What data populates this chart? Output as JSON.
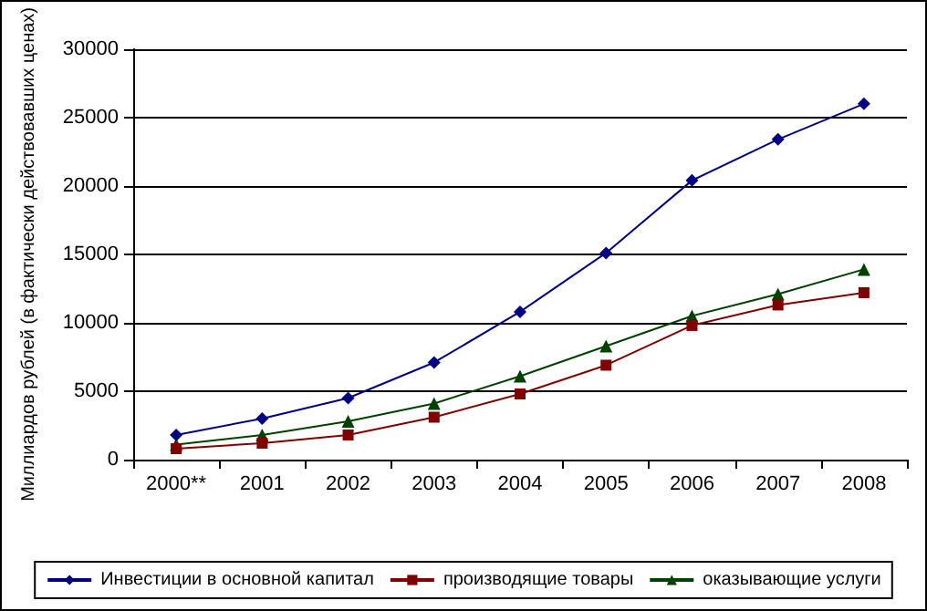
{
  "chart_data": {
    "type": "line",
    "ylabel": "Миллиардов рублей (в фактически действовавших ценах)",
    "categories": [
      "2000**",
      "2001",
      "2002",
      "2003",
      "2004",
      "2005",
      "2006",
      "2007",
      "2008"
    ],
    "series": [
      {
        "name": "Инвестиции в основной капитал",
        "color": "#000080",
        "marker": "diamond",
        "values": [
          1800,
          3000,
          4500,
          7100,
          10800,
          15100,
          20400,
          23400,
          26000
        ]
      },
      {
        "name": "производящие товары",
        "color": "#800000",
        "marker": "square",
        "values": [
          800,
          1200,
          1800,
          3100,
          4800,
          6900,
          9800,
          11300,
          12200
        ]
      },
      {
        "name": "оказывающие услуги",
        "color": "#004000",
        "marker": "triangle",
        "values": [
          1100,
          1800,
          2800,
          4100,
          6100,
          8300,
          10500,
          12100,
          13900
        ]
      }
    ],
    "ylim": [
      0,
      30000
    ],
    "yticks": [
      0,
      5000,
      10000,
      15000,
      20000,
      25000,
      30000
    ],
    "grid": "y",
    "legend": "bottom",
    "line_style": "solid"
  }
}
